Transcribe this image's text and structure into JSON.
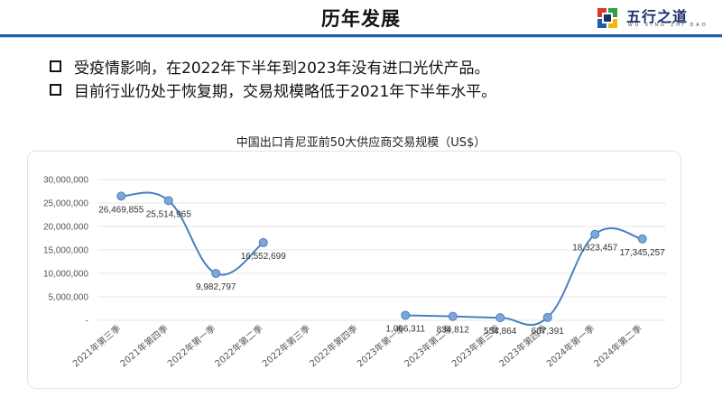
{
  "header": {
    "title": "历年发展",
    "logo": {
      "name": "五行之道",
      "sub": "WU XING ZHI DAO",
      "icon": "four-color-knot-logo-icon"
    },
    "accent_color": "#1f5fa6"
  },
  "bullets": [
    "受疫情影响，在2022年下半年到2023年没有进口光伏产品。",
    "目前行业仍处于恢复期，交易规模略低于2021年下半年水平。"
  ],
  "chart_data": {
    "type": "line",
    "title": "中国出口肯尼亚前50大供应商交易规模（US$）",
    "categories": [
      "2021年第三季",
      "2021年第四季",
      "2022年第一季",
      "2022年第二季",
      "2022年第三季",
      "2022年第四季",
      "2023年第一季",
      "2023年第二季",
      "2023年第三季",
      "2023年第四季",
      "2024年第一季",
      "2024年第二季"
    ],
    "segments": [
      {
        "points": [
          {
            "x": 0,
            "y": 26469855,
            "label": "26,469,855"
          },
          {
            "x": 1,
            "y": 25514965,
            "label": "25,514,965"
          },
          {
            "x": 2,
            "y": 9982797,
            "label": "9,982,797"
          },
          {
            "x": 3,
            "y": 16552699,
            "label": "16,552,699"
          }
        ]
      },
      {
        "points": [
          {
            "x": 6,
            "y": 1066311,
            "label": "1,066,311"
          },
          {
            "x": 7,
            "y": 834812,
            "label": "834,812"
          },
          {
            "x": 8,
            "y": 554864,
            "label": "554,864"
          },
          {
            "x": 9,
            "y": 607391,
            "label": "607,391"
          },
          {
            "x": 10,
            "y": 18323457,
            "label": "18,323,457"
          },
          {
            "x": 11,
            "y": 17345257,
            "label": "17,345,257"
          }
        ]
      }
    ],
    "yticks": [
      "30,000,000",
      "25,000,000",
      "20,000,000",
      "15,000,000",
      "10,000,000",
      "5,000,000",
      "-"
    ],
    "ytick_values": [
      30000000,
      25000000,
      20000000,
      15000000,
      10000000,
      5000000,
      0
    ],
    "ylim": [
      0,
      30000000
    ],
    "grid": true,
    "line_color": "#4a7fc1",
    "marker_color": "#7ea6d8"
  }
}
